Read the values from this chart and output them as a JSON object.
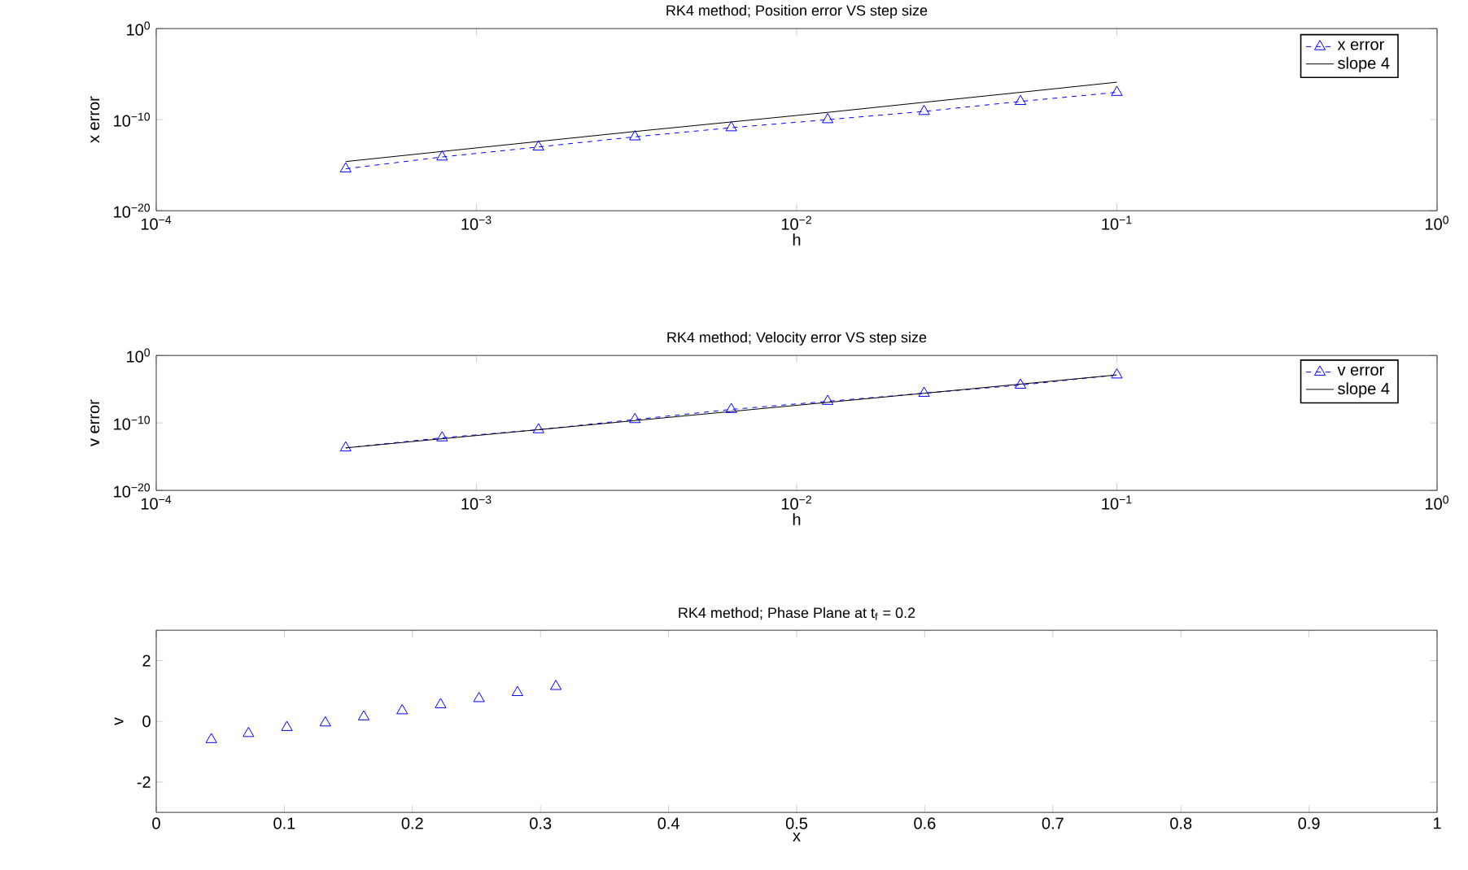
{
  "chart_data": [
    {
      "type": "line",
      "title": "RK4 method; Position error VS step size",
      "xlabel": "h",
      "ylabel": "x error",
      "log": "xy",
      "legend": "top right",
      "xlim": [
        0.0001,
        1
      ],
      "ylim": [
        1e-20,
        1
      ],
      "xticks": [
        {
          "value": 0.0001,
          "label": "10$^{−4}$"
        },
        {
          "value": 0.001,
          "label": "10$^{−3}$"
        },
        {
          "value": 0.01,
          "label": "10$^{−2}$"
        },
        {
          "value": 0.1,
          "label": "10$^{−1}$"
        },
        {
          "value": 1,
          "label": "10$^{0}$"
        }
      ],
      "yticks": [
        {
          "value": 1e-20,
          "label": "10$^{−20}$"
        },
        {
          "value": 1e-10,
          "label": "10$^{−10}$"
        },
        {
          "value": 1,
          "label": "10$^{0}$"
        }
      ],
      "x": [
        0.000390625,
        0.00078125,
        0.0015625,
        0.003125,
        0.00625,
        0.0125,
        0.025,
        0.05,
        0.1
      ],
      "series": [
        {
          "name": "x error",
          "color": "#0000ff",
          "marker": "triangle",
          "line_style": "dashed",
          "values": [
            4e-16,
            8e-15,
            1e-13,
            1.3e-12,
            1.3e-11,
            1e-10,
            8e-10,
            1e-08,
            1e-07
          ]
        },
        {
          "name": "slope 4",
          "color": "#000000",
          "marker": "none",
          "line_style": "solid",
          "values": [
            2.5e-15,
            3.2e-14,
            4e-13,
            5e-12,
            5.6e-11,
            6.3e-10,
            8e-09,
            1e-07,
            1.3e-06
          ]
        }
      ]
    },
    {
      "type": "line",
      "title": "RK4 method; Velocity error VS step size",
      "xlabel": "h",
      "ylabel": "v error",
      "log": "xy",
      "legend": "top right",
      "xlim": [
        0.0001,
        1
      ],
      "ylim": [
        1e-20,
        1
      ],
      "xticks": [
        {
          "value": 0.0001,
          "label": "10$^{−4}$"
        },
        {
          "value": 0.001,
          "label": "10$^{−3}$"
        },
        {
          "value": 0.01,
          "label": "10$^{−2}$"
        },
        {
          "value": 0.1,
          "label": "10$^{−1}$"
        },
        {
          "value": 1,
          "label": "10$^{0}$"
        }
      ],
      "yticks": [
        {
          "value": 1e-20,
          "label": "10$^{−20}$"
        },
        {
          "value": 1e-10,
          "label": "10$^{−10}$"
        },
        {
          "value": 1,
          "label": "10$^{0}$"
        }
      ],
      "x": [
        0.000390625,
        0.00078125,
        0.0015625,
        0.003125,
        0.00625,
        0.0125,
        0.025,
        0.05,
        0.1
      ],
      "series": [
        {
          "name": "v error",
          "color": "#0000ff",
          "marker": "triangle",
          "line_style": "dashed",
          "values": [
            2e-14,
            6.3e-13,
            1e-11,
            3.2e-10,
            1e-08,
            1.6e-07,
            2.5e-06,
            4e-05,
            0.0013
          ]
        },
        {
          "name": "slope 4",
          "color": "#000000",
          "marker": "none",
          "line_style": "solid",
          "values": [
            2e-14,
            4.5e-13,
            1e-11,
            2.2e-10,
            5e-09,
            1.1e-07,
            2.5e-06,
            5.6e-05,
            0.0013
          ]
        }
      ]
    },
    {
      "type": "scatter",
      "title": "RK4 method; Phase Plane at t$_{f}$ = 0.2",
      "xlabel": "x",
      "ylabel": "v",
      "marker": "triangle",
      "xlim": [
        0,
        1
      ],
      "ylim": [
        -3,
        3
      ],
      "xticks": [
        0,
        0.1,
        0.2,
        0.3,
        0.4,
        0.5,
        0.6,
        0.7,
        0.8,
        0.9,
        1
      ],
      "yticks": [
        -2,
        0,
        2
      ],
      "x": [
        0.043,
        0.072,
        0.102,
        0.132,
        0.162,
        0.192,
        0.222,
        0.252,
        0.282,
        0.312
      ],
      "series": [
        {
          "color": "#0000ff",
          "values": [
            -0.6,
            -0.4,
            -0.2,
            -0.05,
            0.15,
            0.35,
            0.55,
            0.75,
            0.95,
            1.15
          ]
        }
      ]
    }
  ]
}
